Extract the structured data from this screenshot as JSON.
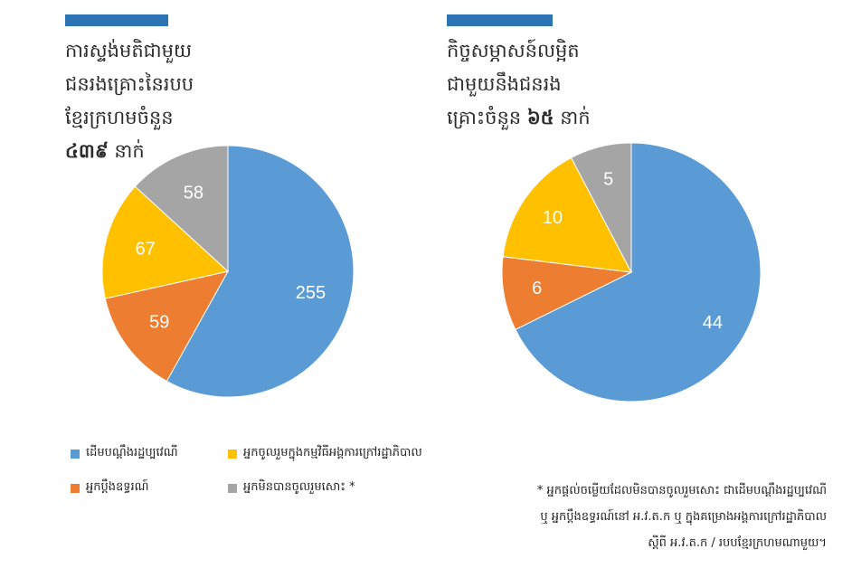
{
  "colors": {
    "accent": "#2e74b5",
    "blue": "#5b9bd5",
    "orange": "#ed7d31",
    "yellow": "#ffc000",
    "gray": "#a5a5a5"
  },
  "left_panel": {
    "title_lines": [
      "ការស្ទង់មតិជាមួយ",
      "ជនរងគ្រោះនៃរបប",
      "ខ្មែរក្រហមចំនួន"
    ],
    "title_last_strong": "៤៣៩",
    "title_last_rest": " នាក់"
  },
  "right_panel": {
    "title_lines": [
      "កិច្ចសម្ភាសន៍លម្អិត",
      "ជាមួយនឹងជនរង"
    ],
    "title_last_prefix": "គ្រោះចំនួន ",
    "title_last_strong": "៦៥",
    "title_last_rest": " នាក់"
  },
  "legend": [
    {
      "label": "ដើមបណ្តឹងរដ្ឋប្បវេណី",
      "color": "#5b9bd5"
    },
    {
      "label": "អ្នកចូលរួមក្នុងកម្មវិធីអង្គការក្រៅរដ្ឋាភិបាល",
      "color": "#ffc000"
    },
    {
      "label": "អ្នកប្តឹងឧទ្ធរណ៍",
      "color": "#ed7d31"
    },
    {
      "label": "អ្នកមិនបានចូលរួមសោះ *",
      "color": "#a5a5a5"
    }
  ],
  "footnote": {
    "lines": [
      "* អ្នកផ្តល់ចម្លើយដែលមិនបានចូលរួមសោះ ជាដើមបណ្តឹងរដ្ឋប្បវេណី",
      "ឬ អ្នកប្តឹងឧទ្ធរណ៍នៅ អ.វ.ត.ក ឬ ក្នុងគម្រោងអង្គការក្រៅរដ្ឋាភិបាល",
      "ស្តីពី អ.វ.ត.ក / របបខ្មែរក្រហមណាមួយ។"
    ]
  },
  "chart_data": [
    {
      "type": "pie",
      "title": "ការស្ទង់មតិជាមួយជនរងគ្រោះនៃរបបខ្មែរក្រហមចំនួន ៤៣៩ នាក់",
      "categories": [
        "ដើមបណ្តឹងរដ្ឋប្បវេណី",
        "អ្នកប្តឹងឧទ្ធរណ៍",
        "អ្នកចូលរួមក្នុងកម្មវិធីអង្គការក្រៅរដ្ឋាភិបាល",
        "អ្នកមិនបានចូលរួមសោះ *"
      ],
      "values": [
        255,
        59,
        67,
        58
      ],
      "colors": [
        "#5b9bd5",
        "#ed7d31",
        "#ffc000",
        "#a5a5a5"
      ]
    },
    {
      "type": "pie",
      "title": "កិច្ចសម្ភាសន៍លម្អិតជាមួយនឹងជនរងគ្រោះចំនួន ៦៥ នាក់",
      "categories": [
        "ដើមបណ្តឹងរដ្ឋប្បវេណី",
        "អ្នកប្តឹងឧទ្ធរណ៍",
        "អ្នកចូលរួមក្នុងកម្មវិធីអង្គការក្រៅរដ្ឋាភិបាល",
        "អ្នកមិនបានចូលរួមសោះ *"
      ],
      "values": [
        44,
        6,
        10,
        5
      ],
      "colors": [
        "#5b9bd5",
        "#ed7d31",
        "#ffc000",
        "#a5a5a5"
      ]
    }
  ]
}
